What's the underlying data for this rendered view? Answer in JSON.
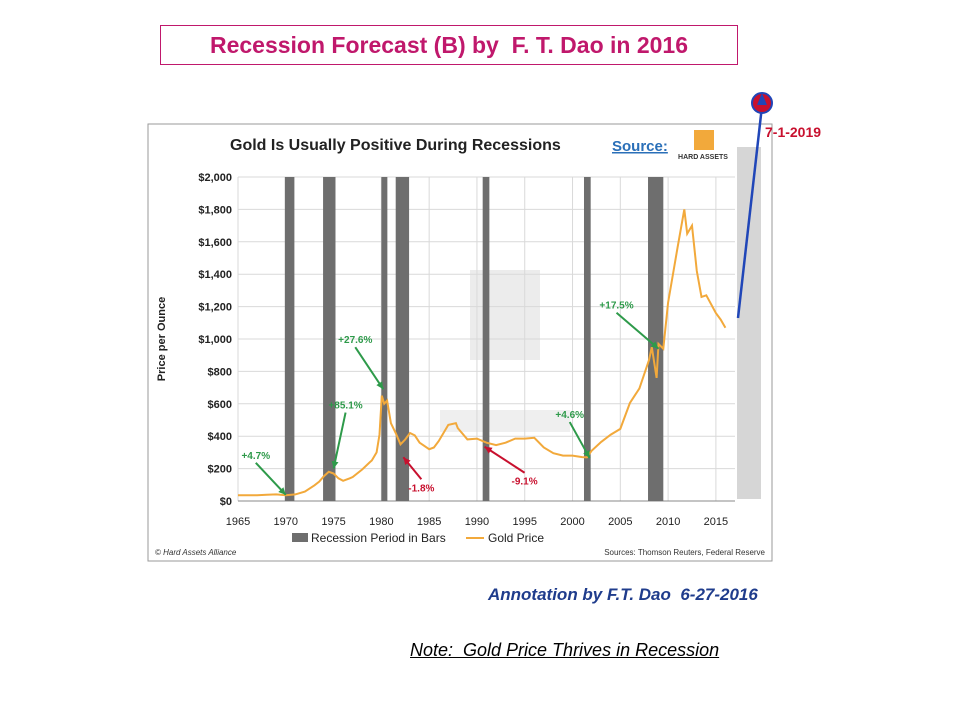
{
  "slide": {
    "title": "Recession Forecast (B) by  F. T. Dao in 2016",
    "annotation": "Annotation by F.T. Dao  6-27-2016",
    "note": "Note:  Gold Price Thrives in Recession",
    "forecast_label": "7-1-2019"
  },
  "colors": {
    "title": "#c0186c",
    "gold_line": "#f2a93b",
    "recession_bar": "#6e6e6e",
    "positive_annotation": "#2e9a4a",
    "negative_annotation": "#c8102e",
    "forecast_arrow": "#2046b8",
    "forecast_label": "#c8102e",
    "annotation_text": "#1f3c8c"
  },
  "chart_data": {
    "type": "line",
    "title": "Gold Is Usually Positive During Recessions",
    "source_label": "Source:",
    "logo_text": "HARD ASSETS",
    "ylabel": "Price per Ounce",
    "xlabel": "",
    "xlim": [
      1965,
      2017
    ],
    "ylim": [
      0,
      2000
    ],
    "x_ticks": [
      1965,
      1970,
      1975,
      1980,
      1985,
      1990,
      1995,
      2000,
      2005,
      2010,
      2015
    ],
    "y_ticks": [
      {
        "value": 0,
        "label": "$0"
      },
      {
        "value": 200,
        "label": "$200"
      },
      {
        "value": 400,
        "label": "$400"
      },
      {
        "value": 600,
        "label": "$600"
      },
      {
        "value": 800,
        "label": "$800"
      },
      {
        "value": 1000,
        "label": "$1,000"
      },
      {
        "value": 1200,
        "label": "$1,200"
      },
      {
        "value": 1400,
        "label": "$1,400"
      },
      {
        "value": 1600,
        "label": "$1,600"
      },
      {
        "value": 1800,
        "label": "$1,800"
      },
      {
        "value": 2000,
        "label": "$2,000"
      }
    ],
    "grid": true,
    "legend_position": "bottom-center",
    "legend": [
      {
        "name": "Recession Period in Bars",
        "kind": "bar"
      },
      {
        "name": "Gold Price",
        "kind": "line"
      }
    ],
    "footer_left": "© Hard Assets Alliance",
    "footer_right": "Sources: Thomson Reuters, Federal Reserve",
    "recessions": [
      {
        "start": 1969.9,
        "end": 1970.9
      },
      {
        "start": 1973.9,
        "end": 1975.2
      },
      {
        "start": 1980.0,
        "end": 1980.6
      },
      {
        "start": 1981.5,
        "end": 1982.9
      },
      {
        "start": 1990.6,
        "end": 1991.3
      },
      {
        "start": 2001.2,
        "end": 2001.9
      },
      {
        "start": 2007.9,
        "end": 2009.5
      }
    ],
    "series": [
      {
        "name": "Gold Price",
        "x": [
          1965,
          1966,
          1967,
          1968,
          1969,
          1970,
          1971,
          1972,
          1973,
          1973.5,
          1974,
          1974.5,
          1975,
          1975.5,
          1976,
          1976.7,
          1977,
          1978,
          1978.8,
          1979,
          1979.5,
          1979.8,
          1980.05,
          1980.3,
          1980.6,
          1981,
          1981.5,
          1982,
          1982.5,
          1983,
          1983.5,
          1984,
          1985,
          1985.5,
          1986,
          1987,
          1987.8,
          1988,
          1989,
          1990,
          1991,
          1992,
          1993,
          1994,
          1995,
          1996,
          1997,
          1998,
          1999,
          2000,
          2001,
          2001.5,
          2002,
          2003,
          2004,
          2005,
          2006,
          2007,
          2008,
          2008.3,
          2008.8,
          2009,
          2009.5,
          2010,
          2011,
          2011.7,
          2012,
          2012.5,
          2013,
          2013.5,
          2014,
          2015,
          2015.5,
          2016
        ],
        "values": [
          35,
          35,
          35,
          39,
          41,
          36,
          41,
          58,
          97,
          120,
          154,
          180,
          170,
          140,
          125,
          140,
          148,
          195,
          240,
          250,
          300,
          410,
          650,
          600,
          620,
          480,
          420,
          350,
          380,
          420,
          405,
          360,
          320,
          330,
          370,
          470,
          480,
          450,
          380,
          385,
          360,
          345,
          360,
          385,
          385,
          390,
          330,
          295,
          280,
          280,
          271,
          270,
          310,
          365,
          410,
          445,
          605,
          695,
          870,
          950,
          760,
          970,
          940,
          1225,
          1570,
          1800,
          1650,
          1700,
          1420,
          1260,
          1270,
          1160,
          1120,
          1070
        ]
      }
    ],
    "annotations": [
      {
        "text": "+4.7%",
        "x": 1970,
        "y": 38,
        "type": "positive"
      },
      {
        "text": "+85.1%",
        "x": 1975,
        "y": 200,
        "type": "positive"
      },
      {
        "text": "+27.6%",
        "x": 1980.2,
        "y": 690,
        "type": "positive"
      },
      {
        "text": "-1.8%",
        "x": 1982.3,
        "y": 270,
        "type": "negative"
      },
      {
        "text": "-9.1%",
        "x": 1990.8,
        "y": 335,
        "type": "negative"
      },
      {
        "text": "+4.6%",
        "x": 2001.8,
        "y": 265,
        "type": "positive"
      },
      {
        "text": "+17.5%",
        "x": 2009,
        "y": 940,
        "type": "positive"
      }
    ]
  }
}
